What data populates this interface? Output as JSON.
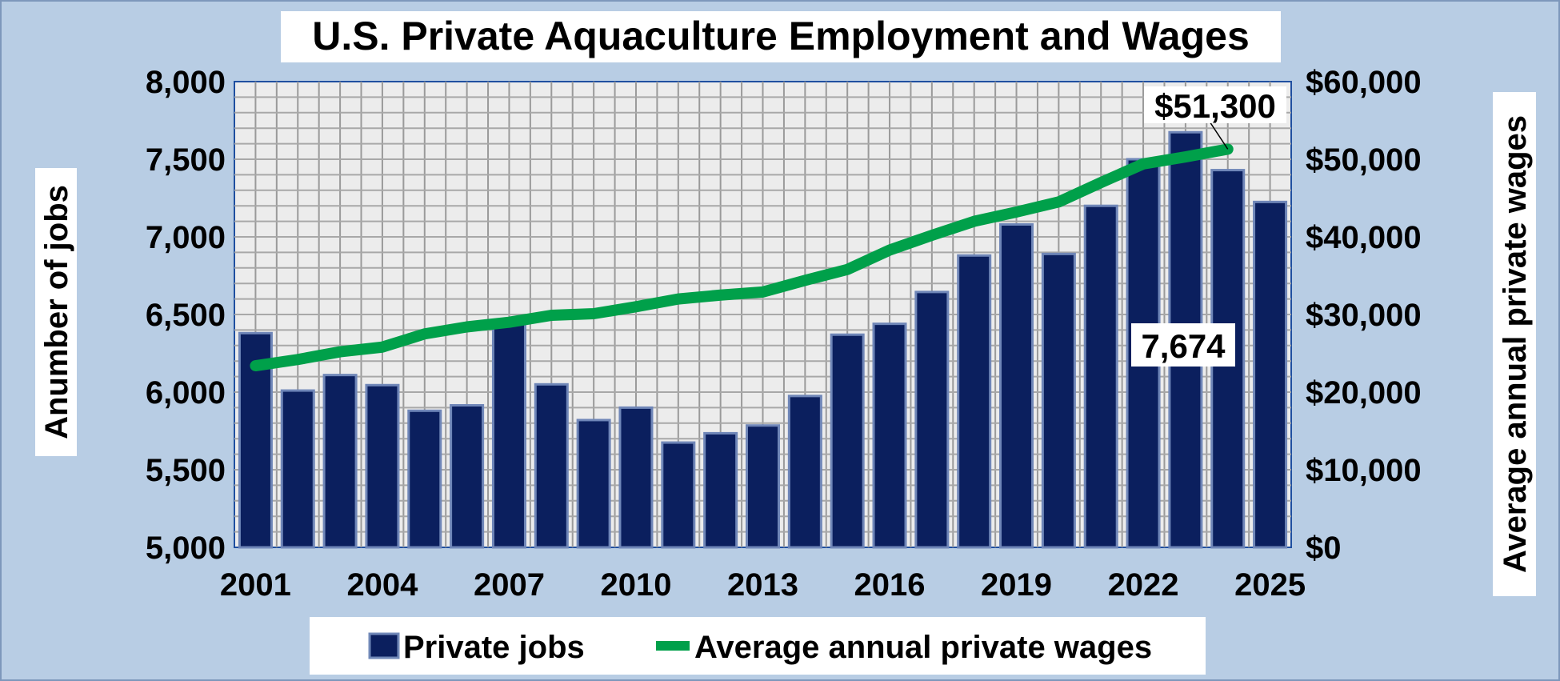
{
  "chart_data": {
    "type": "bar+line",
    "title": "U.S. Private Aquaculture Employment and Wages",
    "ylabel_left": "Anumber of jobs",
    "ylabel_right": "Average annual private wages",
    "ylim_left": [
      5000,
      8000
    ],
    "ylim_right": [
      0,
      60000
    ],
    "yticks_left": [
      "5,000",
      "5,500",
      "6,000",
      "6,500",
      "7,000",
      "7,500",
      "8,000"
    ],
    "yticks_right": [
      "$0",
      "$10,000",
      "$20,000",
      "$30,000",
      "$40,000",
      "$50,000",
      "$60,000"
    ],
    "xticks": [
      "2001",
      "2004",
      "2007",
      "2010",
      "2013",
      "2016",
      "2019",
      "2022",
      "2025"
    ],
    "grid": true,
    "legend_position": "bottom",
    "categories": [
      2001,
      2002,
      2003,
      2004,
      2005,
      2006,
      2007,
      2008,
      2009,
      2010,
      2011,
      2012,
      2013,
      2014,
      2015,
      2016,
      2017,
      2018,
      2019,
      2020,
      2021,
      2022,
      2023,
      2024,
      2025
    ],
    "series": [
      {
        "name": "Private jobs",
        "type": "bar",
        "axis": "left",
        "color": "#0b1f5e",
        "values": [
          6380,
          6010,
          6110,
          6045,
          5880,
          5915,
          6450,
          6050,
          5820,
          5900,
          5675,
          5735,
          5785,
          5975,
          6370,
          6440,
          6645,
          6880,
          7080,
          6890,
          7200,
          7500,
          7674,
          7430,
          7225
        ]
      },
      {
        "name": "Average annual private wages",
        "type": "line",
        "axis": "right",
        "color": "#00a04a",
        "values": [
          23400,
          24200,
          25200,
          25800,
          27500,
          28400,
          29000,
          29900,
          30100,
          31000,
          32000,
          32500,
          32900,
          34400,
          35800,
          38300,
          40200,
          42000,
          43200,
          44500,
          47000,
          49400,
          50300,
          51300,
          null
        ]
      }
    ],
    "annotations": [
      {
        "text": "$51,300",
        "series": "Average annual private wages",
        "x": 2024
      },
      {
        "text": "7,674",
        "series": "Private jobs",
        "x": 2023
      }
    ]
  }
}
